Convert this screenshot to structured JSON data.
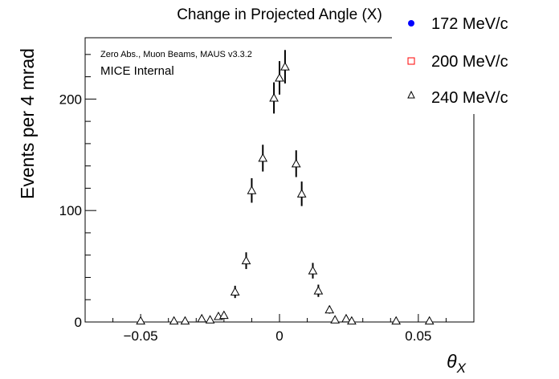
{
  "chart_data": {
    "type": "scatter",
    "title": "Change in Projected Angle (X)",
    "xlabel": "θ_X",
    "ylabel": "Events per 4 mrad",
    "annotations": [
      "Zero Abs., Muon Beams, MAUS v3.3.2",
      "MICE Internal"
    ],
    "xlim": [
      -0.07,
      0.07
    ],
    "ylim": [
      0,
      255
    ],
    "xticks": [
      -0.05,
      0,
      0.05
    ],
    "xtick_labels": [
      "−0.05",
      "0",
      "0.05"
    ],
    "yticks": [
      0,
      100,
      200
    ],
    "ytick_labels": [
      "0",
      "100",
      "200"
    ],
    "legend_placement": "top-right",
    "series": [
      {
        "name": "172 MeV/c",
        "marker": "filled-circle",
        "color": "#0000ff",
        "x": [],
        "y": [],
        "err": []
      },
      {
        "name": "200 MeV/c",
        "marker": "open-square",
        "color": "#ff0000",
        "x": [],
        "y": [],
        "err": []
      },
      {
        "name": "240 MeV/c",
        "marker": "open-triangle",
        "color": "#000000",
        "x": [
          -0.05,
          -0.038,
          -0.034,
          -0.028,
          -0.025,
          -0.022,
          -0.02,
          -0.016,
          -0.012,
          -0.01,
          -0.006,
          -0.002,
          0.0,
          0.002,
          0.006,
          0.008,
          0.012,
          0.014,
          0.018,
          0.02,
          0.024,
          0.026,
          0.042,
          0.054
        ],
        "y": [
          1,
          1,
          1,
          3,
          2,
          5,
          6,
          27,
          55,
          118,
          147,
          201,
          219,
          229,
          142,
          115,
          46,
          28,
          11,
          2,
          3,
          1,
          1,
          1
        ],
        "err": [
          1,
          1,
          1,
          2,
          2,
          2.5,
          2.5,
          5.5,
          7.5,
          11,
          12,
          14,
          15,
          15,
          12,
          11,
          7,
          5.5,
          3.5,
          1.5,
          2,
          1,
          1,
          1
        ]
      }
    ]
  }
}
